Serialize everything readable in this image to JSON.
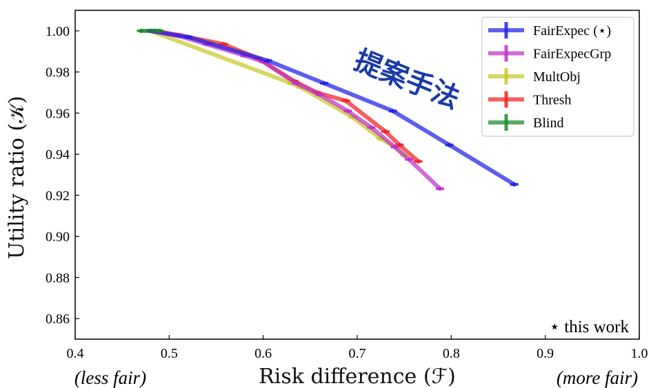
{
  "chart_data": {
    "type": "line",
    "title": "",
    "xlabel": "Risk difference (ℱ)",
    "ylabel": "Utility ratio (𝒦)",
    "xlim": [
      0.4,
      1.0
    ],
    "ylim": [
      0.85,
      1.01
    ],
    "x_ticks": [
      "0.4",
      "0.5",
      "0.6",
      "0.7",
      "0.8",
      "0.9",
      "1.0"
    ],
    "y_ticks": [
      "0.86",
      "0.88",
      "0.90",
      "0.92",
      "0.94",
      "0.96",
      "0.98",
      "1.00"
    ],
    "x_left_note": "(less fair)",
    "x_right_note": "(more fair)",
    "footnote": "⋆ this work",
    "annotation": "提案手法",
    "grid": false,
    "legend_position": "top-right",
    "series": [
      {
        "name": "FairExpec (⋆)",
        "color": "#2020e8",
        "x": [
          0.48,
          0.52,
          0.605,
          0.665,
          0.738,
          0.798,
          0.867
        ],
        "y": [
          1.0,
          0.997,
          0.9855,
          0.9745,
          0.961,
          0.9445,
          0.9253
        ]
      },
      {
        "name": "FairExpecGrp",
        "color": "#c030c8",
        "x": [
          0.48,
          0.51,
          0.54,
          0.58,
          0.6,
          0.635,
          0.66,
          0.69,
          0.715,
          0.74,
          0.755,
          0.788
        ],
        "y": [
          1.0,
          0.9975,
          0.9935,
          0.988,
          0.985,
          0.9745,
          0.969,
          0.961,
          0.953,
          0.9435,
          0.9375,
          0.9232
        ]
      },
      {
        "name": "MultObj",
        "color": "#c8c82a",
        "x": [
          0.48,
          0.63,
          0.64,
          0.695,
          0.725,
          0.74,
          0.75
        ],
        "y": [
          1.0,
          0.9745,
          0.9725,
          0.958,
          0.9475,
          0.9435,
          0.9395
        ]
      },
      {
        "name": "Thresh",
        "color": "#f02020",
        "x": [
          0.485,
          0.51,
          0.558,
          0.595,
          0.633,
          0.657,
          0.688,
          0.73,
          0.745,
          0.765
        ],
        "y": [
          1.0,
          0.998,
          0.9935,
          0.9865,
          0.9755,
          0.97,
          0.966,
          0.951,
          0.9445,
          0.9365
        ]
      },
      {
        "name": "Blind",
        "color": "#1a8a2a",
        "x": [
          0.47,
          0.49
        ],
        "y": [
          1.0,
          1.0
        ]
      }
    ]
  },
  "colors": {
    "FairExpec": "#2020e8",
    "FairExpecGrp": "#c030c8",
    "MultObj": "#c8c82a",
    "Thresh": "#f02020",
    "Blind": "#1a8a2a",
    "annotation": "#1a3aa8"
  }
}
